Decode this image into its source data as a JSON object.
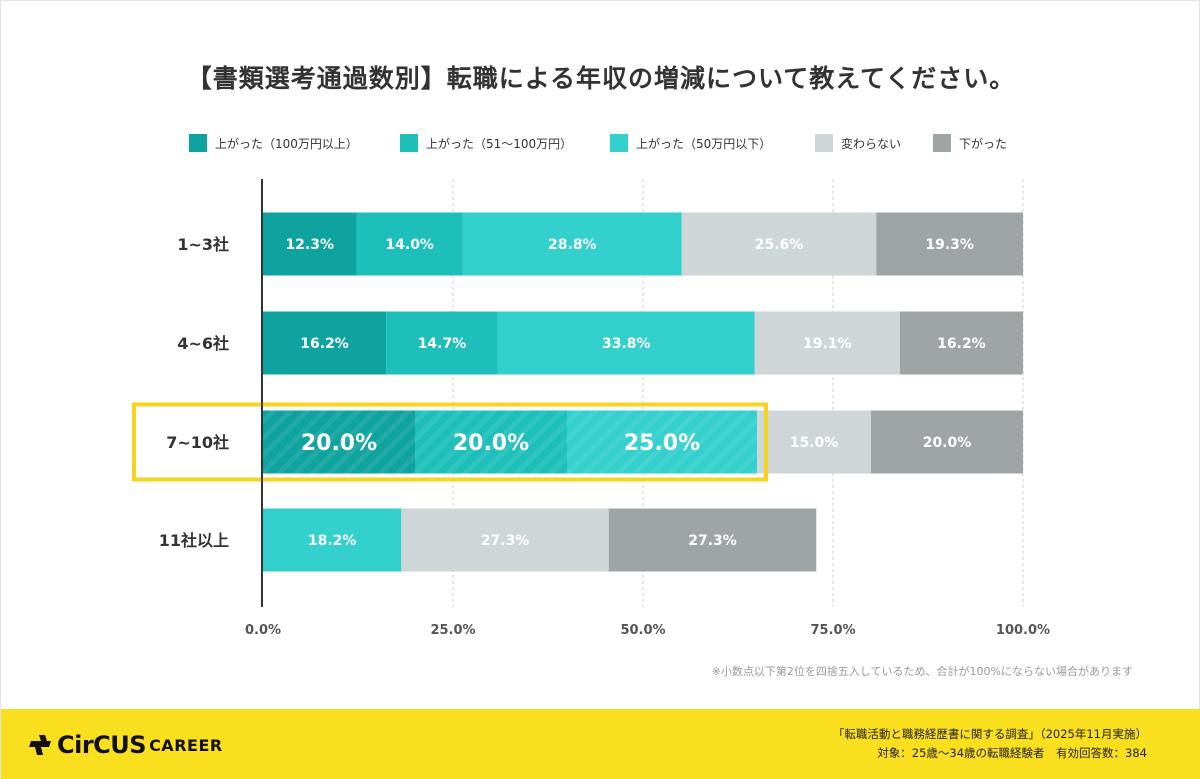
{
  "chart_data": {
    "type": "bar",
    "orientation": "horizontal",
    "stacked": true,
    "title": "【書類選考通過数別】転職による年収の増減について教えてください。",
    "categories": [
      "1~3社",
      "4~6社",
      "7~10社",
      "11社以上"
    ],
    "series": [
      {
        "name": "上がった（100万円以上）",
        "color": "#0fa3a0",
        "values": [
          12.3,
          16.2,
          20.0,
          0
        ]
      },
      {
        "name": "上がった（51～100万円）",
        "color": "#1ebfbb",
        "values": [
          14.0,
          14.7,
          20.0,
          0
        ]
      },
      {
        "name": "上がった（50万円以下）",
        "color": "#33d0ce",
        "values": [
          28.8,
          33.8,
          25.0,
          18.2
        ]
      },
      {
        "name": "変わらない",
        "color": "#cfd6d8",
        "values": [
          25.6,
          19.1,
          15.0,
          27.3
        ]
      },
      {
        "name": "下がった",
        "color": "#9fa4a5",
        "values": [
          19.3,
          16.2,
          20.0,
          27.3
        ]
      }
    ],
    "segment_labels": [
      [
        "12.3%",
        "14.0%",
        "28.8%",
        "25.6%",
        "19.3%"
      ],
      [
        "16.2%",
        "14.7%",
        "33.8%",
        "19.1%",
        "16.2%"
      ],
      [
        "20.0%",
        "20.0%",
        "25.0%",
        "15.0%",
        "20.0%"
      ],
      [
        "",
        "",
        "18.2%",
        "27.3%",
        "27.3%"
      ]
    ],
    "highlighted_category_index": 2,
    "highlight_color": "#f5d51f",
    "xlim": [
      0,
      100
    ],
    "x_ticks": [
      0,
      25,
      50,
      75,
      100
    ],
    "x_tick_labels": [
      "0.0%",
      "25.0%",
      "50.0%",
      "75.0%",
      "100.0%"
    ],
    "grid": true,
    "legend_position": "top"
  },
  "note": "※小数点以下第2位を四捨五入しているため、合計が100%にならない場合があります",
  "footer": {
    "logo_circus": "CirCUS",
    "logo_career": "CAREER",
    "survey_title": "「転職活動と職務経歴書に関する調査」（2025年11月実施）",
    "survey_target": "対象：25歳～34歳の転職経験者　有効回答数：384",
    "background_color": "#fadf1e"
  }
}
